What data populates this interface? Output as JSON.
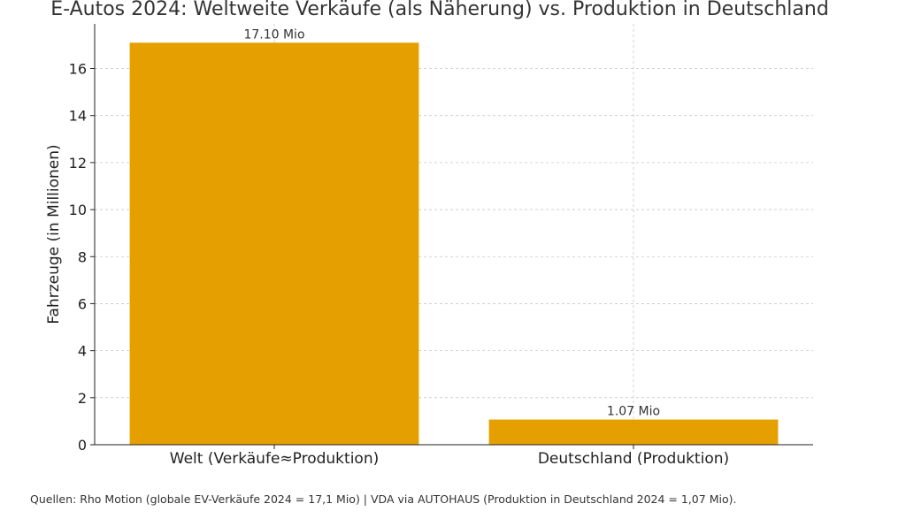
{
  "chart_data": {
    "type": "bar",
    "title": "E-Autos 2024: Weltweite Verkäufe (als Näherung) vs. Produktion in Deutschland",
    "ylabel": "Fahrzeuge (in Millionen)",
    "xlabel": "",
    "categories": [
      "Welt (Verkäufe≈Produktion)",
      "Deutschland (Produktion)"
    ],
    "values": [
      17.1,
      1.07
    ],
    "data_labels": [
      "17.10 Mio",
      "1.07 Mio"
    ],
    "ylim": [
      0,
      17.9
    ],
    "yticks": [
      0,
      2,
      4,
      6,
      8,
      10,
      12,
      14,
      16
    ],
    "grid": true,
    "bar_color": "#E5A000"
  },
  "footer": {
    "source": "Quellen: Rho Motion (globale EV-Verkäufe 2024 = 17,1 Mio) | VDA via AUTOHAUS (Produktion in Deutschland 2024 = 1,07 Mio)."
  }
}
